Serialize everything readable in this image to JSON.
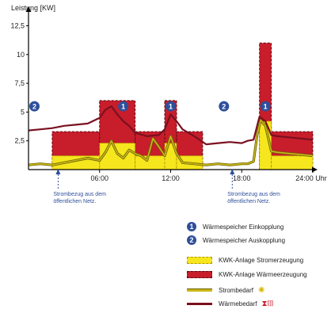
{
  "chart_data": {
    "type": "area",
    "ylabel": "Leistung [KW]",
    "y_ticks": [
      "12,5",
      "10",
      "7,5",
      "5",
      "2,5"
    ],
    "y_tick_values": [
      12.5,
      10,
      7.5,
      5,
      2.5
    ],
    "ylim": [
      0,
      13.5
    ],
    "x_ticks": [
      "06:00",
      "12:00",
      "18:00",
      "24:00 Uhr"
    ],
    "x_tick_values": [
      6,
      12,
      18,
      24
    ],
    "xlim": [
      0,
      24
    ],
    "grid": false,
    "notes": [
      "Strombezug aus dem öffentlichen Netz.",
      "Strombezug aus dem öffentlichen Netz."
    ],
    "note_hours": [
      2.5,
      17.2
    ],
    "waermeerzeugung_bars": [
      {
        "from": 2.0,
        "to": 6.0,
        "value": 3.3
      },
      {
        "from": 6.0,
        "to": 9.0,
        "value": 6.0
      },
      {
        "from": 9.0,
        "to": 11.5,
        "value": 3.3
      },
      {
        "from": 11.5,
        "to": 12.5,
        "value": 6.0
      },
      {
        "from": 12.5,
        "to": 14.7,
        "value": 3.3
      },
      {
        "from": 19.5,
        "to": 20.5,
        "value": 11.0
      },
      {
        "from": 20.5,
        "to": 24.0,
        "value": 3.3
      }
    ],
    "stromerzeugung_bars": [
      {
        "from": 2.0,
        "to": 6.0,
        "value": 1.2
      },
      {
        "from": 6.0,
        "to": 9.0,
        "value": 2.3
      },
      {
        "from": 9.0,
        "to": 11.5,
        "value": 1.2
      },
      {
        "from": 11.5,
        "to": 12.5,
        "value": 2.3
      },
      {
        "from": 12.5,
        "to": 14.7,
        "value": 1.2
      },
      {
        "from": 19.5,
        "to": 20.5,
        "value": 4.2
      },
      {
        "from": 20.5,
        "to": 24.0,
        "value": 1.2
      }
    ],
    "strombedarf": {
      "name": "Strombedarf",
      "x": [
        0,
        1,
        2,
        3,
        4,
        5,
        5.5,
        6,
        6.5,
        7,
        7.5,
        8,
        8.5,
        9,
        9.5,
        10,
        10.5,
        11,
        11.5,
        12,
        12.5,
        13,
        14,
        15,
        16,
        17,
        18,
        18.5,
        19,
        19.3,
        19.6,
        20,
        20.5,
        21,
        22,
        23,
        24
      ],
      "values": [
        0.4,
        0.5,
        0.4,
        0.6,
        0.8,
        1.0,
        0.9,
        0.8,
        1.5,
        2.5,
        1.4,
        1.0,
        1.7,
        1.4,
        1.2,
        0.8,
        2.7,
        2.0,
        1.2,
        2.9,
        1.4,
        0.6,
        0.5,
        0.4,
        0.5,
        0.4,
        0.5,
        0.5,
        0.7,
        3.0,
        4.3,
        3.8,
        1.6,
        1.5,
        1.4,
        1.3,
        1.2
      ]
    },
    "waermebedarf": {
      "name": "Wärmebedarf",
      "x": [
        0,
        1,
        2,
        3,
        4,
        5,
        6,
        6.5,
        7,
        7.5,
        8,
        8.5,
        9,
        10,
        11,
        11.5,
        12,
        12.5,
        13,
        14,
        15,
        16,
        17,
        18,
        18.5,
        19,
        19.5,
        20,
        20.5,
        21,
        22,
        23,
        24
      ],
      "values": [
        3.4,
        3.5,
        3.6,
        3.8,
        3.9,
        4.0,
        4.5,
        5.2,
        5.5,
        4.8,
        4.2,
        3.8,
        3.2,
        2.9,
        3.0,
        3.5,
        4.8,
        4.2,
        3.5,
        2.9,
        2.2,
        2.3,
        2.4,
        2.3,
        2.5,
        2.6,
        4.6,
        4.2,
        3.0,
        2.9,
        2.8,
        2.7,
        2.6
      ]
    },
    "badges": [
      {
        "label": "2",
        "hour": 0.5,
        "value": 5.5
      },
      {
        "label": "1",
        "hour": 8.0,
        "value": 5.5
      },
      {
        "label": "1",
        "hour": 12.0,
        "value": 5.5
      },
      {
        "label": "2",
        "hour": 16.5,
        "value": 5.5
      },
      {
        "label": "1",
        "hour": 20.0,
        "value": 5.5
      }
    ],
    "colors": {
      "yellow": "#f6e61e",
      "yellow_dash": "#b39b00",
      "red": "#c81d2b",
      "red_dash": "#5a0a10",
      "strom_line": "#c9b81a",
      "strom_outline": "#6d6300",
      "waerme_line": "#7a1020",
      "badge": "#2e4f9a",
      "axis": "#000000",
      "note": "#2e4f9a"
    }
  },
  "legend": {
    "einkopplung": {
      "badge": "1",
      "label": "Wärmespeicher Einkopplung"
    },
    "auskopplung": {
      "badge": "2",
      "label": "Wärmespeicher Auskopplung"
    },
    "stromerzeugung": "KWK-Anlage Stromerzeugung",
    "waermeerzeugung": "KWK-Anlage Wärmeerzeugung",
    "strombedarf": "Strombedarf",
    "waermebedarf": "Wärmebedarf",
    "strombedarf_icon": "lightbulb-icon",
    "waermebedarf_icon": "shower-radiator-icon"
  }
}
